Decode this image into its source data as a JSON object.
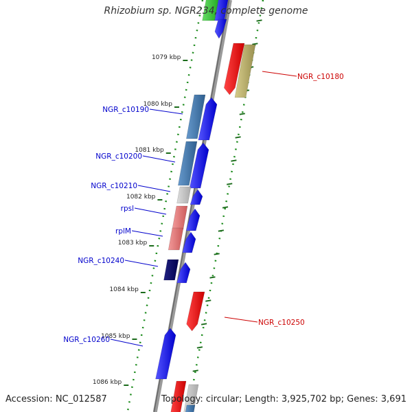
{
  "title": "Rhizobium sp. NGR234, complete genome",
  "footer": {
    "accession": "Accession: NC_012587",
    "topology": "Topology: circular; Length: 3,925,702 bp; Genes: 3,691"
  },
  "colors": {
    "backbone": "#808080",
    "dots": "#1a8a1a",
    "tick": "#1a6b1a",
    "label_blue": "#0000cc",
    "label_red": "#cc0000"
  },
  "ticks": [
    "1079 kbp",
    "1080 kbp",
    "1081 kbp",
    "1082 kbp",
    "1083 kbp",
    "1084 kbp",
    "1085 kbp",
    "1086 kbp"
  ],
  "gene_labels": [
    {
      "text": "NGR_c10180",
      "color": "red",
      "side": "right"
    },
    {
      "text": "NGR_c10190",
      "color": "blue",
      "side": "left"
    },
    {
      "text": "NGR_c10200",
      "color": "blue",
      "side": "left"
    },
    {
      "text": "NGR_c10210",
      "color": "blue",
      "side": "left"
    },
    {
      "text": "rpsl",
      "color": "blue",
      "side": "left"
    },
    {
      "text": "rplM",
      "color": "blue",
      "side": "left"
    },
    {
      "text": "NGR_c10240",
      "color": "blue",
      "side": "left"
    },
    {
      "text": "NGR_c10250",
      "color": "red",
      "side": "right"
    },
    {
      "text": "NGR_c10260",
      "color": "blue",
      "side": "left"
    }
  ]
}
